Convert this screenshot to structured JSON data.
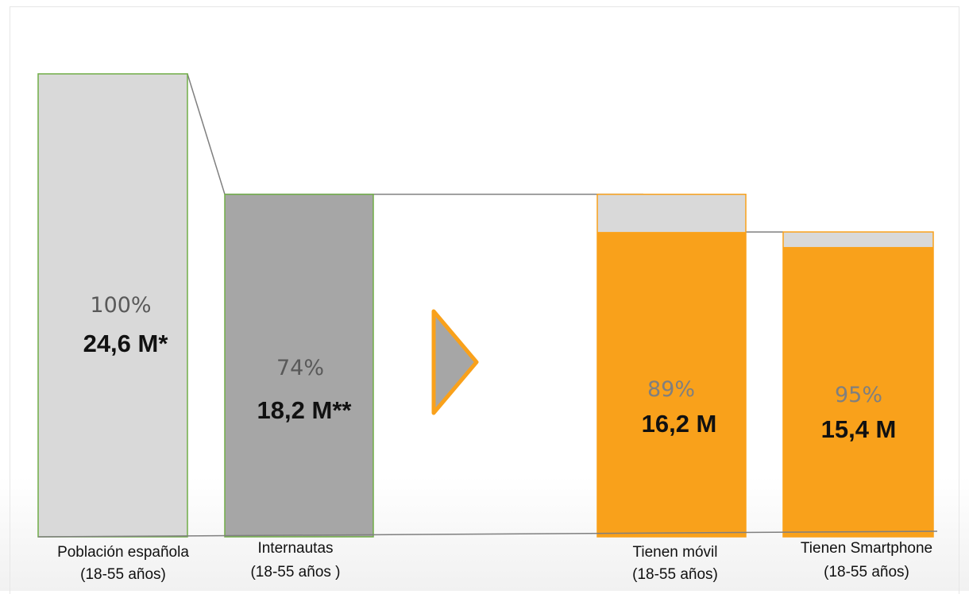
{
  "chart_data": {
    "type": "bar",
    "categories": [
      {
        "line1": "Población española",
        "line2": "(18-55 años)"
      },
      {
        "line1": "Internautas",
        "line2": "(18-55 años )"
      },
      {
        "line1": "Tienen móvil",
        "line2": "(18-55 años)"
      },
      {
        "line1": "Tienen Smartphone",
        "line2": "(18-55 años)"
      }
    ],
    "percent_labels": [
      "100%",
      "74%",
      "89%",
      "95%"
    ],
    "value_labels": [
      "24,6 M*",
      "18,2 M**",
      "16,2 M",
      "15,4 M"
    ],
    "values_millions": [
      24.6,
      18.2,
      16.2,
      15.4
    ],
    "ylim": [
      0,
      24.6
    ],
    "colors": {
      "population": "#d9d9d9",
      "internet": "#a6a6a6",
      "mobile": "#f9a11b",
      "remainder": "#d9d9d9",
      "outline_green": "#70ad47",
      "connector": "#7f7f7f"
    }
  }
}
